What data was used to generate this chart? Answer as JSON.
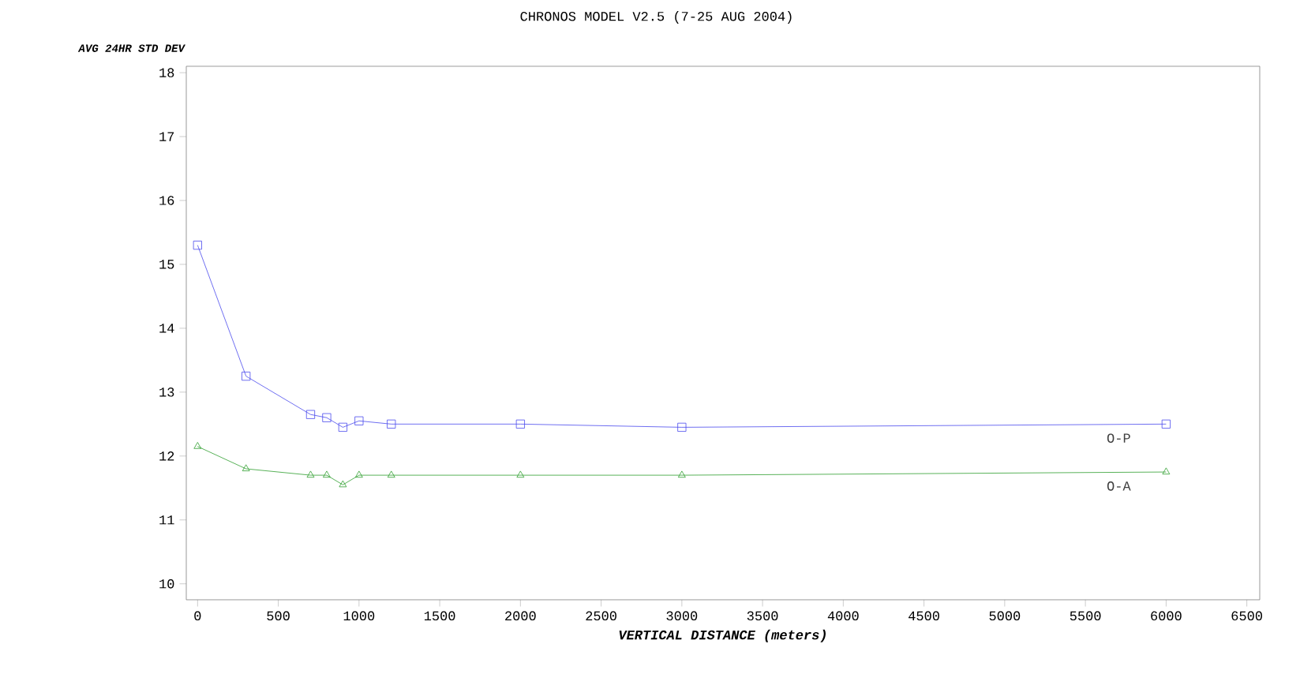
{
  "chart_data": {
    "type": "line",
    "title": "CHRONOS MODEL V2.5  (7-25 AUG 2004)",
    "xlabel": "VERTICAL DISTANCE (meters)",
    "ylabel": "AVG 24HR STD DEV",
    "grid": false,
    "x": [
      0,
      300,
      700,
      800,
      900,
      1000,
      1200,
      2000,
      3000,
      6000
    ],
    "series": [
      {
        "name": "O-P",
        "color": "#4a4aee",
        "marker": "square",
        "values": [
          15.3,
          13.25,
          12.65,
          12.6,
          12.45,
          12.55,
          12.5,
          12.5,
          12.45,
          12.5
        ]
      },
      {
        "name": "O-A",
        "color": "#2e9e2e",
        "marker": "triangle",
        "values": [
          12.15,
          11.8,
          11.7,
          11.7,
          11.55,
          11.7,
          11.7,
          11.7,
          11.7,
          11.75
        ]
      }
    ],
    "xlim": [
      -70,
      6580
    ],
    "ylim": [
      9.75,
      18.1
    ],
    "xticks": [
      0,
      500,
      1000,
      1500,
      2000,
      2500,
      3000,
      3500,
      4000,
      4500,
      5000,
      5500,
      6000,
      6500
    ],
    "yticks": [
      10,
      11,
      12,
      13,
      14,
      15,
      16,
      17,
      18
    ]
  }
}
